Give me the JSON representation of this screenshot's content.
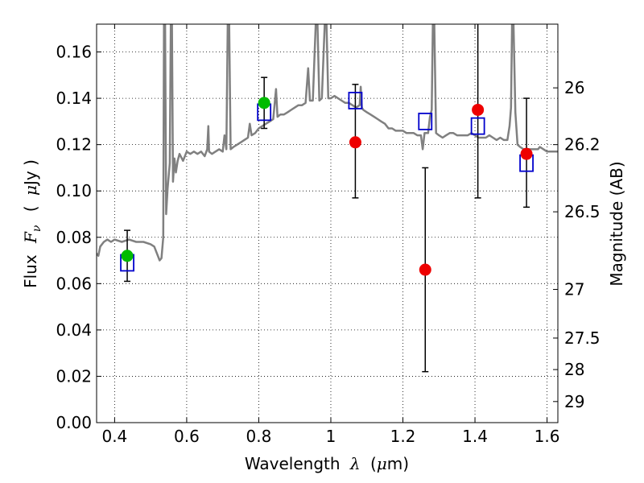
{
  "chart_data": {
    "type": "scatter",
    "xlabel": "Wavelength",
    "xlabel_symbol": "λ",
    "xlabel_unit_pre": "(",
    "xlabel_unit_mu": "μ",
    "xlabel_unit_post": "m)",
    "ylabel_left_pre": "Flux",
    "ylabel_left_symbol": "F",
    "ylabel_left_sub": "ν",
    "ylabel_left_unit_open": "(",
    "ylabel_left_unit_mu": "μ",
    "ylabel_left_unit_post": "Jy )",
    "ylabel_right": "Magnitude (AB)",
    "xlim": [
      0.35,
      1.63
    ],
    "ylim": [
      0.0,
      0.172
    ],
    "grid": true,
    "x_ticks": [
      {
        "value": 0.4,
        "label": "0.4"
      },
      {
        "value": 0.6,
        "label": "0.6"
      },
      {
        "value": 0.8,
        "label": "0.8"
      },
      {
        "value": 1.0,
        "label": "1"
      },
      {
        "value": 1.2,
        "label": "1.2"
      },
      {
        "value": 1.4,
        "label": "1.4"
      },
      {
        "value": 1.6,
        "label": "1.6"
      }
    ],
    "y_ticks": [
      {
        "value": 0.0,
        "label": "0.00"
      },
      {
        "value": 0.02,
        "label": "0.02"
      },
      {
        "value": 0.04,
        "label": "0.04"
      },
      {
        "value": 0.06,
        "label": "0.06"
      },
      {
        "value": 0.08,
        "label": "0.08"
      },
      {
        "value": 0.1,
        "label": "0.10"
      },
      {
        "value": 0.12,
        "label": "0.12"
      },
      {
        "value": 0.14,
        "label": "0.14"
      },
      {
        "value": 0.16,
        "label": "0.16"
      }
    ],
    "right_ticks": [
      {
        "flux": 0.1445,
        "label": "26"
      },
      {
        "flux": 0.12,
        "label": "26.2"
      },
      {
        "flux": 0.091,
        "label": "26.5"
      },
      {
        "flux": 0.0575,
        "label": "27"
      },
      {
        "flux": 0.0365,
        "label": "27.5"
      },
      {
        "flux": 0.0229,
        "label": "28"
      },
      {
        "flux": 0.0091,
        "label": "29"
      }
    ],
    "colors": {
      "spectrum": "#808080",
      "model": "#0000cc",
      "green_points": "#00bb00",
      "red_points": "#ee0000",
      "errorbar": "#000000",
      "grid": "#000000"
    },
    "spectrum": [
      [
        0.35,
        0.073
      ],
      [
        0.355,
        0.072
      ],
      [
        0.36,
        0.076
      ],
      [
        0.37,
        0.078
      ],
      [
        0.38,
        0.079
      ],
      [
        0.39,
        0.078
      ],
      [
        0.4,
        0.079
      ],
      [
        0.42,
        0.078
      ],
      [
        0.44,
        0.079
      ],
      [
        0.46,
        0.078
      ],
      [
        0.48,
        0.078
      ],
      [
        0.5,
        0.077
      ],
      [
        0.51,
        0.076
      ],
      [
        0.52,
        0.072
      ],
      [
        0.525,
        0.07
      ],
      [
        0.53,
        0.071
      ],
      [
        0.535,
        0.08
      ],
      [
        0.537,
        0.172
      ],
      [
        0.54,
        0.172
      ],
      [
        0.543,
        0.09
      ],
      [
        0.547,
        0.101
      ],
      [
        0.553,
        0.112
      ],
      [
        0.556,
        0.172
      ],
      [
        0.559,
        0.172
      ],
      [
        0.562,
        0.104
      ],
      [
        0.566,
        0.114
      ],
      [
        0.57,
        0.108
      ],
      [
        0.575,
        0.113
      ],
      [
        0.58,
        0.116
      ],
      [
        0.59,
        0.113
      ],
      [
        0.6,
        0.117
      ],
      [
        0.61,
        0.116
      ],
      [
        0.62,
        0.117
      ],
      [
        0.63,
        0.116
      ],
      [
        0.64,
        0.117
      ],
      [
        0.65,
        0.115
      ],
      [
        0.657,
        0.118
      ],
      [
        0.66,
        0.128
      ],
      [
        0.662,
        0.117
      ],
      [
        0.67,
        0.116
      ],
      [
        0.68,
        0.117
      ],
      [
        0.69,
        0.118
      ],
      [
        0.7,
        0.117
      ],
      [
        0.705,
        0.124
      ],
      [
        0.71,
        0.118
      ],
      [
        0.714,
        0.172
      ],
      [
        0.718,
        0.172
      ],
      [
        0.722,
        0.118
      ],
      [
        0.73,
        0.119
      ],
      [
        0.74,
        0.12
      ],
      [
        0.75,
        0.121
      ],
      [
        0.76,
        0.122
      ],
      [
        0.77,
        0.123
      ],
      [
        0.775,
        0.129
      ],
      [
        0.78,
        0.124
      ],
      [
        0.79,
        0.125
      ],
      [
        0.8,
        0.127
      ],
      [
        0.81,
        0.128
      ],
      [
        0.82,
        0.129
      ],
      [
        0.83,
        0.13
      ],
      [
        0.84,
        0.131
      ],
      [
        0.848,
        0.144
      ],
      [
        0.852,
        0.132
      ],
      [
        0.86,
        0.133
      ],
      [
        0.87,
        0.133
      ],
      [
        0.88,
        0.134
      ],
      [
        0.89,
        0.135
      ],
      [
        0.9,
        0.136
      ],
      [
        0.91,
        0.137
      ],
      [
        0.92,
        0.137
      ],
      [
        0.93,
        0.138
      ],
      [
        0.937,
        0.153
      ],
      [
        0.942,
        0.139
      ],
      [
        0.95,
        0.139
      ],
      [
        0.958,
        0.172
      ],
      [
        0.963,
        0.172
      ],
      [
        0.968,
        0.139
      ],
      [
        0.975,
        0.14
      ],
      [
        0.983,
        0.172
      ],
      [
        0.988,
        0.172
      ],
      [
        0.993,
        0.14
      ],
      [
        1.0,
        0.14
      ],
      [
        1.01,
        0.141
      ],
      [
        1.02,
        0.14
      ],
      [
        1.03,
        0.139
      ],
      [
        1.04,
        0.138
      ],
      [
        1.05,
        0.138
      ],
      [
        1.06,
        0.137
      ],
      [
        1.07,
        0.136
      ],
      [
        1.08,
        0.137
      ],
      [
        1.083,
        0.145
      ],
      [
        1.086,
        0.136
      ],
      [
        1.09,
        0.135
      ],
      [
        1.1,
        0.134
      ],
      [
        1.11,
        0.133
      ],
      [
        1.12,
        0.132
      ],
      [
        1.13,
        0.131
      ],
      [
        1.14,
        0.13
      ],
      [
        1.15,
        0.129
      ],
      [
        1.16,
        0.127
      ],
      [
        1.17,
        0.127
      ],
      [
        1.18,
        0.126
      ],
      [
        1.19,
        0.126
      ],
      [
        1.2,
        0.126
      ],
      [
        1.21,
        0.125
      ],
      [
        1.22,
        0.125
      ],
      [
        1.23,
        0.125
      ],
      [
        1.24,
        0.124
      ],
      [
        1.25,
        0.124
      ],
      [
        1.255,
        0.118
      ],
      [
        1.26,
        0.125
      ],
      [
        1.27,
        0.125
      ],
      [
        1.275,
        0.132
      ],
      [
        1.28,
        0.135
      ],
      [
        1.283,
        0.172
      ],
      [
        1.287,
        0.172
      ],
      [
        1.292,
        0.125
      ],
      [
        1.3,
        0.124
      ],
      [
        1.31,
        0.123
      ],
      [
        1.32,
        0.124
      ],
      [
        1.33,
        0.125
      ],
      [
        1.34,
        0.125
      ],
      [
        1.35,
        0.124
      ],
      [
        1.36,
        0.124
      ],
      [
        1.37,
        0.124
      ],
      [
        1.38,
        0.124
      ],
      [
        1.39,
        0.125
      ],
      [
        1.4,
        0.124
      ],
      [
        1.41,
        0.123
      ],
      [
        1.42,
        0.123
      ],
      [
        1.43,
        0.123
      ],
      [
        1.44,
        0.124
      ],
      [
        1.45,
        0.123
      ],
      [
        1.46,
        0.122
      ],
      [
        1.47,
        0.123
      ],
      [
        1.48,
        0.122
      ],
      [
        1.49,
        0.122
      ],
      [
        1.496,
        0.128
      ],
      [
        1.5,
        0.136
      ],
      [
        1.503,
        0.172
      ],
      [
        1.507,
        0.172
      ],
      [
        1.512,
        0.134
      ],
      [
        1.518,
        0.12
      ],
      [
        1.525,
        0.119
      ],
      [
        1.535,
        0.118
      ],
      [
        1.545,
        0.118
      ],
      [
        1.555,
        0.118
      ],
      [
        1.565,
        0.118
      ],
      [
        1.575,
        0.118
      ],
      [
        1.58,
        0.119
      ],
      [
        1.59,
        0.118
      ],
      [
        1.6,
        0.117
      ],
      [
        1.61,
        0.117
      ],
      [
        1.62,
        0.117
      ],
      [
        1.63,
        0.117
      ]
    ],
    "model_points": [
      {
        "x": 0.435,
        "y": 0.069
      },
      {
        "x": 0.815,
        "y": 0.134
      },
      {
        "x": 1.068,
        "y": 0.139
      },
      {
        "x": 1.262,
        "y": 0.13
      },
      {
        "x": 1.408,
        "y": 0.128
      },
      {
        "x": 1.543,
        "y": 0.112
      }
    ],
    "observed_points": [
      {
        "x": 0.435,
        "y": 0.072,
        "err_low": 0.061,
        "err_high": 0.083,
        "color": "green"
      },
      {
        "x": 0.815,
        "y": 0.138,
        "err_low": 0.127,
        "err_high": 0.149,
        "color": "green"
      },
      {
        "x": 1.068,
        "y": 0.121,
        "err_low": 0.097,
        "err_high": 0.146,
        "color": "red"
      },
      {
        "x": 1.262,
        "y": 0.066,
        "err_low": 0.022,
        "err_high": 0.11,
        "color": "red"
      },
      {
        "x": 1.408,
        "y": 0.135,
        "err_low": 0.097,
        "err_high": 0.172,
        "color": "red"
      },
      {
        "x": 1.543,
        "y": 0.116,
        "err_low": 0.093,
        "err_high": 0.14,
        "color": "red"
      }
    ]
  }
}
